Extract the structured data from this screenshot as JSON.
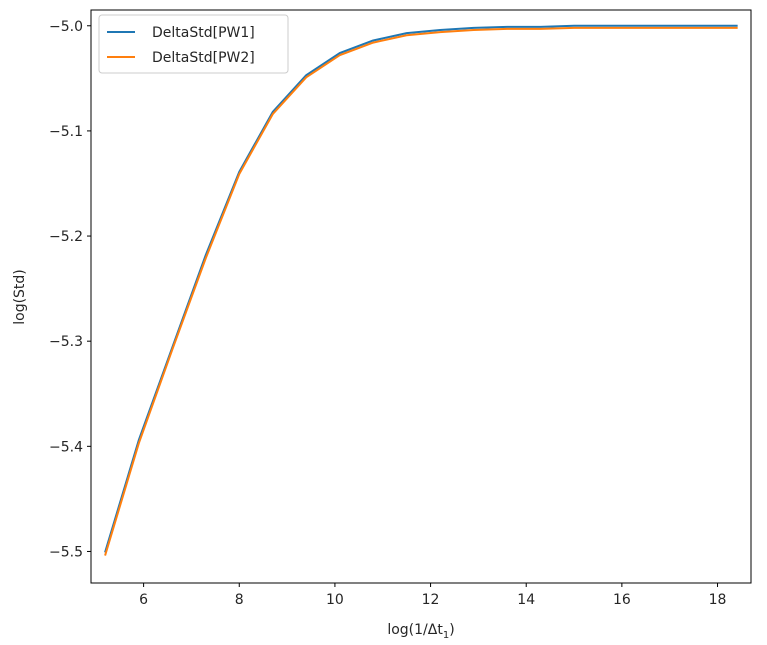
{
  "chart_data": {
    "type": "line",
    "xlabel": "log(1/Δt",
    "xlabel_sub": "1",
    "xlabel_close": ")",
    "ylabel": "log(Std)",
    "xlim": [
      4.9,
      18.7
    ],
    "ylim": [
      -5.53,
      -4.985
    ],
    "xticks": [
      6,
      8,
      10,
      12,
      14,
      16,
      18
    ],
    "xtick_labels": [
      "6",
      "8",
      "10",
      "12",
      "14",
      "16",
      "18"
    ],
    "yticks": [
      -5.0,
      -5.1,
      -5.2,
      -5.3,
      -5.4,
      -5.5
    ],
    "ytick_labels": [
      "−5.0",
      "−5.1",
      "−5.2",
      "−5.3",
      "−5.4",
      "−5.5"
    ],
    "grid": false,
    "legend_position": "upper-left",
    "x": [
      5.2,
      5.9,
      6.6,
      7.3,
      8.0,
      8.7,
      9.4,
      10.1,
      10.8,
      11.5,
      12.2,
      12.9,
      13.6,
      14.3,
      15.0,
      15.7,
      16.4,
      17.1,
      17.8,
      18.4
    ],
    "series": [
      {
        "name": "DeltaStd[PW1]",
        "color": "#1f77b4",
        "values": [
          -5.5,
          -5.394,
          -5.306,
          -5.218,
          -5.139,
          -5.082,
          -5.047,
          -5.026,
          -5.014,
          -5.007,
          -5.004,
          -5.002,
          -5.001,
          -5.001,
          -5.0,
          -5.0,
          -5.0,
          -5.0,
          -5.0,
          -5.0
        ]
      },
      {
        "name": "DeltaStd[PW2]",
        "color": "#ff7f0e",
        "values": [
          -5.503,
          -5.397,
          -5.308,
          -5.221,
          -5.141,
          -5.084,
          -5.049,
          -5.028,
          -5.016,
          -5.009,
          -5.006,
          -5.004,
          -5.003,
          -5.003,
          -5.002,
          -5.002,
          -5.002,
          -5.002,
          -5.002,
          -5.002
        ]
      }
    ]
  }
}
